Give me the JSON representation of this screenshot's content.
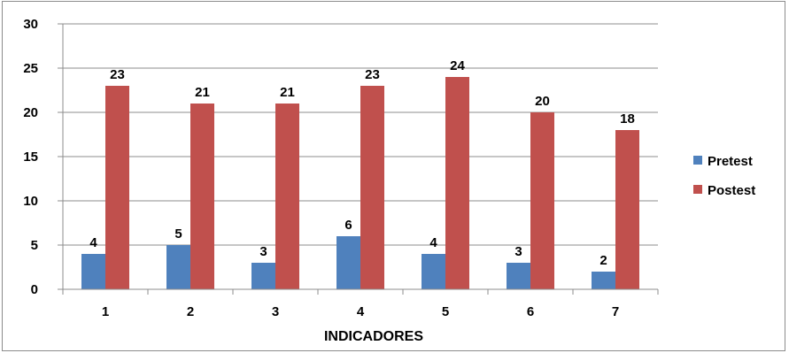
{
  "chart_data": {
    "type": "bar",
    "title": "",
    "xlabel": "INDICADORES",
    "ylabel": "",
    "categories": [
      "1",
      "2",
      "3",
      "4",
      "5",
      "6",
      "7"
    ],
    "series": [
      {
        "name": "Pretest",
        "color": "#4f81bd",
        "values": [
          4,
          5,
          3,
          6,
          4,
          3,
          2
        ]
      },
      {
        "name": "Postest",
        "color": "#c0504d",
        "values": [
          23,
          21,
          21,
          23,
          24,
          20,
          18
        ]
      }
    ],
    "ylim": [
      0,
      30
    ],
    "yticks": [
      0,
      5,
      10,
      15,
      20,
      25,
      30
    ],
    "grid": true,
    "legend_position": "right",
    "data_labels": true
  }
}
